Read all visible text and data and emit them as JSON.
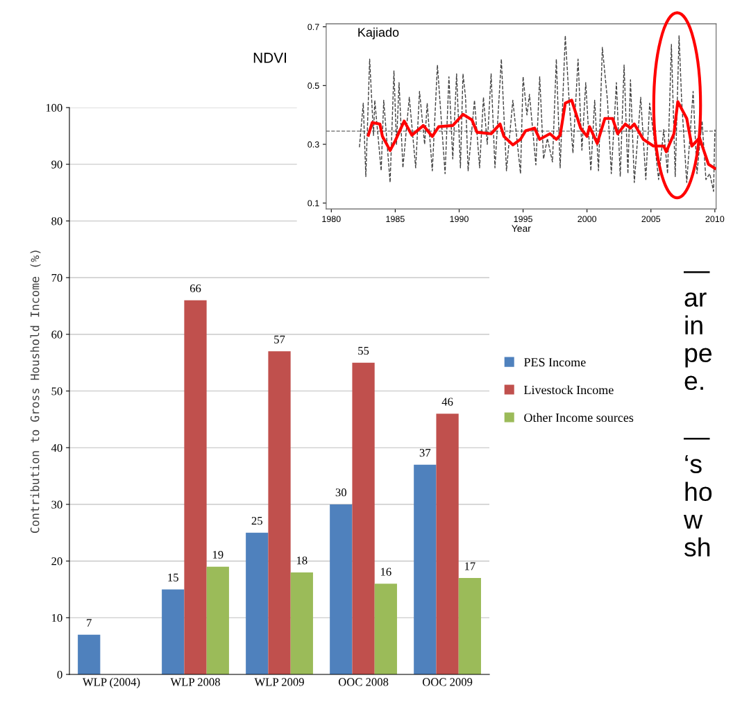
{
  "chart_data": [
    {
      "type": "bar",
      "ylabel": "Contribution to Gross Houshold Income (%)",
      "categories": [
        "WLP (2004)",
        "WLP 2008",
        "WLP 2009",
        "OOC 2008",
        "OOC 2009"
      ],
      "series": [
        {
          "name": "PES Income",
          "color": "#4f81bd",
          "values": [
            7,
            15,
            25,
            30,
            37
          ]
        },
        {
          "name": "Livestock Income",
          "color": "#c0504d",
          "values": [
            null,
            66,
            57,
            55,
            46
          ]
        },
        {
          "name": "Other Income sources",
          "color": "#9bbb59",
          "values": [
            null,
            19,
            18,
            16,
            17
          ]
        }
      ],
      "ylim": [
        0,
        100
      ],
      "yticks": [
        0,
        10,
        20,
        30,
        40,
        50,
        60,
        70,
        80,
        90,
        100
      ],
      "grid": "y",
      "legend": "right",
      "data_labels": true
    },
    {
      "type": "line",
      "xlabel": "Year",
      "ylabel": "NDVI",
      "annotations": [
        "Kajiado"
      ],
      "series": [
        {
          "color": "#404040",
          "line_style": "dashed",
          "x": [
            1982.2,
            1982.5,
            1982.7,
            1983.0,
            1983.3,
            1983.4,
            1983.9,
            1984.1,
            1984.6,
            1984.9,
            1985.1,
            1985.3,
            1985.6,
            1986.1,
            1986.6,
            1986.9,
            1987.3,
            1987.5,
            1987.9,
            1988.3,
            1988.9,
            1989.2,
            1989.5,
            1989.8,
            1990.1,
            1990.3,
            1990.5,
            1990.7,
            1991.2,
            1991.6,
            1991.9,
            1992.2,
            1992.5,
            1992.8,
            1993.3,
            1993.7,
            1994.2,
            1994.8,
            1995.0,
            1995.3,
            1995.5,
            1996.0,
            1996.3,
            1996.6,
            1996.9,
            1997.3,
            1997.6,
            1997.9,
            1998.3,
            1998.6,
            1998.9,
            1999.3,
            1999.6,
            1999.9,
            2000.3,
            2000.6,
            2000.9,
            2001.2,
            2001.6,
            2001.9,
            2002.3,
            2002.6,
            2002.9,
            2003.2,
            2003.4,
            2003.7,
            2004.2,
            2004.6,
            2004.9,
            2005.3,
            2005.6,
            2006.0,
            2006.3,
            2006.6,
            2006.9,
            2007.2,
            2007.4,
            2007.8,
            2008.3,
            2008.6,
            2009.0,
            2009.3,
            2009.6,
            2009.9,
            2010.0
          ],
          "values": [
            0.29,
            0.44,
            0.19,
            0.59,
            0.33,
            0.45,
            0.21,
            0.45,
            0.17,
            0.55,
            0.3,
            0.51,
            0.22,
            0.46,
            0.22,
            0.48,
            0.3,
            0.44,
            0.21,
            0.57,
            0.2,
            0.53,
            0.25,
            0.54,
            0.22,
            0.54,
            0.46,
            0.21,
            0.45,
            0.22,
            0.46,
            0.3,
            0.54,
            0.22,
            0.59,
            0.21,
            0.45,
            0.2,
            0.53,
            0.4,
            0.47,
            0.23,
            0.53,
            0.25,
            0.32,
            0.24,
            0.59,
            0.22,
            0.67,
            0.45,
            0.27,
            0.59,
            0.28,
            0.51,
            0.21,
            0.45,
            0.21,
            0.63,
            0.45,
            0.2,
            0.51,
            0.19,
            0.57,
            0.2,
            0.52,
            0.17,
            0.46,
            0.18,
            0.44,
            0.3,
            0.18,
            0.35,
            0.2,
            0.64,
            0.19,
            0.67,
            0.45,
            0.17,
            0.48,
            0.2,
            0.38,
            0.18,
            0.2,
            0.14,
            0.35
          ]
        },
        {
          "color": "#ff0000",
          "line_style": "solid",
          "x": [
            1982.9,
            1983.2,
            1983.8,
            1984.0,
            1984.6,
            1985.0,
            1985.7,
            1986.3,
            1987.2,
            1987.9,
            1988.4,
            1989.5,
            1990.3,
            1991.0,
            1991.4,
            1992.5,
            1993.2,
            1993.5,
            1994.2,
            1994.8,
            1995.2,
            1995.9,
            1996.3,
            1997.1,
            1997.6,
            1997.9,
            1998.3,
            1998.8,
            1999.5,
            2000.0,
            2000.2,
            2000.8,
            2001.4,
            2002.0,
            2002.4,
            2003.0,
            2003.4,
            2003.7,
            2004.4,
            2005.2,
            2006.0,
            2006.2,
            2006.8,
            2007.1,
            2007.8,
            2008.2,
            2008.8,
            2009.5,
            2010.0
          ],
          "values": [
            0.331,
            0.374,
            0.369,
            0.327,
            0.279,
            0.312,
            0.379,
            0.331,
            0.364,
            0.327,
            0.36,
            0.364,
            0.402,
            0.383,
            0.341,
            0.336,
            0.369,
            0.327,
            0.298,
            0.317,
            0.346,
            0.355,
            0.317,
            0.336,
            0.317,
            0.331,
            0.44,
            0.45,
            0.355,
            0.327,
            0.36,
            0.303,
            0.388,
            0.388,
            0.336,
            0.369,
            0.355,
            0.369,
            0.317,
            0.294,
            0.294,
            0.275,
            0.336,
            0.445,
            0.388,
            0.294,
            0.322,
            0.232,
            0.218
          ]
        }
      ],
      "ref_lines": [
        {
          "axis": "y",
          "value": 0.345,
          "color": "#808080",
          "line_style": "dashed"
        }
      ],
      "xlim": [
        1979.6,
        2010.1
      ],
      "xticks": [
        1980,
        1985,
        1990,
        1995,
        2000,
        2005,
        2010
      ],
      "ylim": [
        0.08,
        0.71
      ],
      "yticks": [
        0.1,
        0.3,
        0.5,
        0.7
      ],
      "grid": false
    },
    {
      "type": "other",
      "annotations": [
        "—",
        "ar",
        "in",
        "pe",
        "e.",
        "—",
        "‘s",
        "ho",
        "w",
        "sh"
      ]
    }
  ]
}
